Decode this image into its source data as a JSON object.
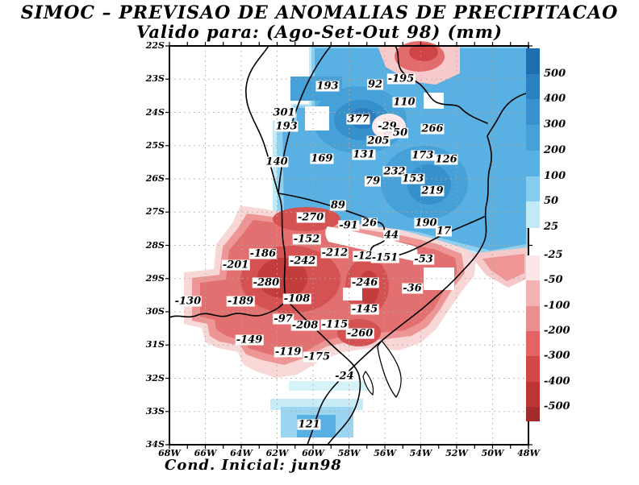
{
  "title": {
    "line1": "SIMOC – PREVISAO DE ANOMALIAS DE PRECIPITACAO",
    "line2": "Valido para: (Ago-Set-Out 98) (mm)"
  },
  "footer": {
    "text": "Cond. Inicial: jun98"
  },
  "axes": {
    "lat": [
      "22S",
      "23S",
      "24S",
      "25S",
      "26S",
      "27S",
      "28S",
      "29S",
      "30S",
      "31S",
      "32S",
      "33S",
      "34S"
    ],
    "lon": [
      "68W",
      "66W",
      "64W",
      "62W",
      "60W",
      "58W",
      "56W",
      "54W",
      "52W",
      "50W",
      "48W"
    ]
  },
  "legend": {
    "positive": {
      "labels": [
        "500",
        "400",
        "300",
        "200",
        "100",
        "50",
        "25"
      ],
      "colors": [
        "#1e6fb0",
        "#2b80c1",
        "#3992cf",
        "#47a1d9",
        "#58b0e3",
        "#85ccef",
        "#c2eaf6"
      ]
    },
    "negative": {
      "labels": [
        "-25",
        "-50",
        "-100",
        "-200",
        "-300",
        "-400",
        "-500"
      ],
      "colors": [
        "#fbe7e7",
        "#f3b3b3",
        "#e98f8f",
        "#e26464",
        "#d24747",
        "#bc3434",
        "#a32b2b"
      ]
    }
  },
  "palette": {
    "grid": "#b5a79a",
    "frame": "#000000",
    "background": "#ffffff"
  },
  "chart_data": {
    "type": "heatmap",
    "title": "SIMOC – PREVISAO DE ANOMALIAS DE PRECIPITACAO",
    "subtitle": "Valido para: (Ago-Set-Out 98) (mm)",
    "units": "mm",
    "lon_range_w": [
      68,
      48
    ],
    "lat_range_s": [
      22,
      34
    ],
    "colorbar_levels": [
      500,
      400,
      300,
      200,
      100,
      50,
      25,
      -25,
      -50,
      -100,
      -200,
      -300,
      -400,
      -500
    ],
    "points": [
      {
        "v": 193,
        "lon": 59.19,
        "lat": 23.21
      },
      {
        "v": 92,
        "lon": 56.54,
        "lat": 23.16
      },
      {
        "v": -195,
        "lon": 55.1,
        "lat": 22.99
      },
      {
        "v": 110,
        "lon": 54.92,
        "lat": 23.7
      },
      {
        "v": 301,
        "lon": 61.62,
        "lat": 24.01
      },
      {
        "v": 193,
        "lon": 61.48,
        "lat": 24.42
      },
      {
        "v": 377,
        "lon": 57.48,
        "lat": 24.21
      },
      {
        "v": -29,
        "lon": 55.87,
        "lat": 24.42
      },
      {
        "v": 266,
        "lon": 53.35,
        "lat": 24.5
      },
      {
        "v": 205,
        "lon": 56.36,
        "lat": 24.86
      },
      {
        "v": 50,
        "lon": 55.14,
        "lat": 24.62
      },
      {
        "v": 140,
        "lon": 62.02,
        "lat": 25.49
      },
      {
        "v": 169,
        "lon": 59.51,
        "lat": 25.39
      },
      {
        "v": 131,
        "lon": 57.17,
        "lat": 25.27
      },
      {
        "v": 173,
        "lon": 53.89,
        "lat": 25.3
      },
      {
        "v": 126,
        "lon": 52.58,
        "lat": 25.42
      },
      {
        "v": 232,
        "lon": 55.46,
        "lat": 25.78
      },
      {
        "v": 153,
        "lon": 54.43,
        "lat": 26.0
      },
      {
        "v": 79,
        "lon": 56.67,
        "lat": 26.07
      },
      {
        "v": 219,
        "lon": 53.35,
        "lat": 26.36
      },
      {
        "v": 89,
        "lon": 58.61,
        "lat": 26.8
      },
      {
        "v": -270,
        "lon": 60.13,
        "lat": 27.16
      },
      {
        "v": -91,
        "lon": 58.02,
        "lat": 27.41
      },
      {
        "v": 26,
        "lon": 56.85,
        "lat": 27.33
      },
      {
        "v": 190,
        "lon": 53.71,
        "lat": 27.33
      },
      {
        "v": 17,
        "lon": 52.72,
        "lat": 27.58
      },
      {
        "v": 44,
        "lon": 55.64,
        "lat": 27.7
      },
      {
        "v": -152,
        "lon": 60.36,
        "lat": 27.82
      },
      {
        "v": -186,
        "lon": 62.79,
        "lat": 28.25
      },
      {
        "v": -242,
        "lon": 60.58,
        "lat": 28.47
      },
      {
        "v": -212,
        "lon": 58.79,
        "lat": 28.23
      },
      {
        "v": -12,
        "lon": 57.21,
        "lat": 28.33
      },
      {
        "v": -151,
        "lon": 56.0,
        "lat": 28.38
      },
      {
        "v": -53,
        "lon": 53.84,
        "lat": 28.42
      },
      {
        "v": -201,
        "lon": 64.31,
        "lat": 28.59
      },
      {
        "v": -280,
        "lon": 62.61,
        "lat": 29.13
      },
      {
        "v": -246,
        "lon": 57.12,
        "lat": 29.13
      },
      {
        "v": -36,
        "lon": 54.47,
        "lat": 29.3
      },
      {
        "v": -130,
        "lon": 66.97,
        "lat": 29.68
      },
      {
        "v": -189,
        "lon": 64.04,
        "lat": 29.68
      },
      {
        "v": -108,
        "lon": 60.9,
        "lat": 29.61
      },
      {
        "v": -97,
        "lon": 61.66,
        "lat": 30.22
      },
      {
        "v": -208,
        "lon": 60.45,
        "lat": 30.41
      },
      {
        "v": -115,
        "lon": 58.79,
        "lat": 30.39
      },
      {
        "v": -145,
        "lon": 57.12,
        "lat": 29.93
      },
      {
        "v": -260,
        "lon": 57.39,
        "lat": 30.65
      },
      {
        "v": -149,
        "lon": 63.55,
        "lat": 30.85
      },
      {
        "v": -119,
        "lon": 61.39,
        "lat": 31.21
      },
      {
        "v": -175,
        "lon": 59.78,
        "lat": 31.36
      },
      {
        "v": -24,
        "lon": 58.25,
        "lat": 31.94
      },
      {
        "v": 121,
        "lon": 60.22,
        "lat": 33.39
      }
    ]
  }
}
